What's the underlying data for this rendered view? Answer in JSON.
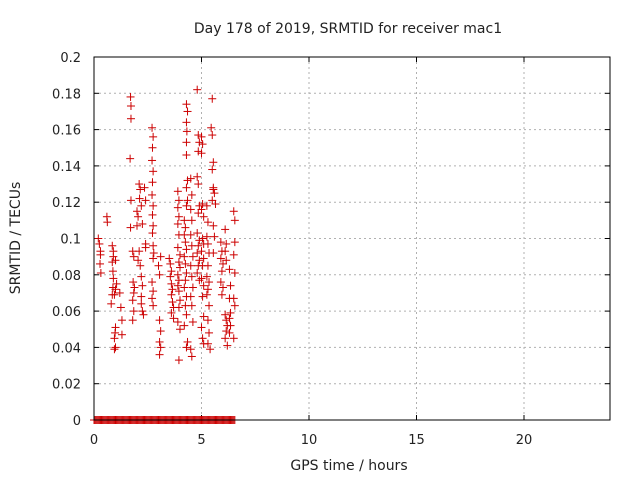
{
  "chart_data": {
    "type": "scatter",
    "title": "Day 178 of 2019, SRMTID for receiver mac1",
    "xlabel": "GPS time / hours",
    "ylabel": "SRMTID / TECUs",
    "xlim": [
      0,
      24
    ],
    "ylim": [
      0,
      0.2
    ],
    "xticks": [
      "0",
      "5",
      "10",
      "15",
      "20"
    ],
    "yticks": [
      "0",
      "0.02",
      "0.04",
      "0.06",
      "0.08",
      "0.1",
      "0.12",
      "0.14",
      "0.16",
      "0.18",
      "0.2"
    ],
    "grid": true,
    "marker": "+",
    "color": "#cc0000",
    "series": [
      {
        "values": [
          [
            0.2,
            0.1
          ],
          [
            0.25,
            0.097
          ],
          [
            0.3,
            0.093
          ],
          [
            0.3,
            0.091
          ],
          [
            0.28,
            0.086
          ],
          [
            0.32,
            0.081
          ],
          [
            0.6,
            0.112
          ],
          [
            0.62,
            0.109
          ],
          [
            0.85,
            0.096
          ],
          [
            0.9,
            0.093
          ],
          [
            0.9,
            0.09
          ],
          [
            0.85,
            0.087
          ],
          [
            0.88,
            0.082
          ],
          [
            0.9,
            0.078
          ],
          [
            0.88,
            0.073
          ],
          [
            0.85,
            0.069
          ],
          [
            0.8,
            0.064
          ],
          [
            1.0,
            0.088
          ],
          [
            1.05,
            0.075
          ],
          [
            1.0,
            0.072
          ],
          [
            0.95,
            0.069
          ],
          [
            1.0,
            0.051
          ],
          [
            0.98,
            0.048
          ],
          [
            0.95,
            0.045
          ],
          [
            1.0,
            0.04
          ],
          [
            0.95,
            0.039
          ],
          [
            1.2,
            0.07
          ],
          [
            1.25,
            0.062
          ],
          [
            1.3,
            0.055
          ],
          [
            1.3,
            0.047
          ],
          [
            1.7,
            0.178
          ],
          [
            1.72,
            0.173
          ],
          [
            1.72,
            0.166
          ],
          [
            1.68,
            0.144
          ],
          [
            1.72,
            0.121
          ],
          [
            1.7,
            0.106
          ],
          [
            1.8,
            0.093
          ],
          [
            1.85,
            0.09
          ],
          [
            1.82,
            0.076
          ],
          [
            1.88,
            0.073
          ],
          [
            1.85,
            0.07
          ],
          [
            1.8,
            0.066
          ],
          [
            1.85,
            0.06
          ],
          [
            1.8,
            0.055
          ],
          [
            2.0,
            0.115
          ],
          [
            2.05,
            0.112
          ],
          [
            2.0,
            0.107
          ],
          [
            2.1,
            0.093
          ],
          [
            2.05,
            0.088
          ],
          [
            2.1,
            0.13
          ],
          [
            2.15,
            0.127
          ],
          [
            2.12,
            0.122
          ],
          [
            2.2,
            0.118
          ],
          [
            2.25,
            0.108
          ],
          [
            2.15,
            0.085
          ],
          [
            2.2,
            0.079
          ],
          [
            2.25,
            0.074
          ],
          [
            2.2,
            0.068
          ],
          [
            2.2,
            0.064
          ],
          [
            2.25,
            0.06
          ],
          [
            2.3,
            0.058
          ],
          [
            2.35,
            0.128
          ],
          [
            2.4,
            0.121
          ],
          [
            2.4,
            0.097
          ],
          [
            2.4,
            0.095
          ],
          [
            2.7,
            0.161
          ],
          [
            2.75,
            0.156
          ],
          [
            2.72,
            0.15
          ],
          [
            2.7,
            0.143
          ],
          [
            2.75,
            0.137
          ],
          [
            2.72,
            0.131
          ],
          [
            2.7,
            0.124
          ],
          [
            2.75,
            0.118
          ],
          [
            2.72,
            0.113
          ],
          [
            2.75,
            0.107
          ],
          [
            2.72,
            0.103
          ],
          [
            2.75,
            0.096
          ],
          [
            2.78,
            0.092
          ],
          [
            2.75,
            0.089
          ],
          [
            2.7,
            0.076
          ],
          [
            2.75,
            0.071
          ],
          [
            2.7,
            0.067
          ],
          [
            2.75,
            0.063
          ],
          [
            3.0,
            0.085
          ],
          [
            3.05,
            0.08
          ],
          [
            3.1,
            0.09
          ],
          [
            3.05,
            0.055
          ],
          [
            3.1,
            0.049
          ],
          [
            3.05,
            0.043
          ],
          [
            3.1,
            0.04
          ],
          [
            3.05,
            0.036
          ],
          [
            3.5,
            0.089
          ],
          [
            3.55,
            0.086
          ],
          [
            3.6,
            0.082
          ],
          [
            3.55,
            0.079
          ],
          [
            3.6,
            0.075
          ],
          [
            3.65,
            0.072
          ],
          [
            3.6,
            0.069
          ],
          [
            3.65,
            0.065
          ],
          [
            3.7,
            0.062
          ],
          [
            3.6,
            0.059
          ],
          [
            3.7,
            0.056
          ],
          [
            3.9,
            0.126
          ],
          [
            3.95,
            0.121
          ],
          [
            3.9,
            0.117
          ],
          [
            3.95,
            0.112
          ],
          [
            3.9,
            0.108
          ],
          [
            3.95,
            0.102
          ],
          [
            3.9,
            0.095
          ],
          [
            4.0,
            0.091
          ],
          [
            3.95,
            0.087
          ],
          [
            4.0,
            0.084
          ],
          [
            3.9,
            0.08
          ],
          [
            3.95,
            0.077
          ],
          [
            3.9,
            0.074
          ],
          [
            3.95,
            0.071
          ],
          [
            4.0,
            0.066
          ],
          [
            3.95,
            0.062
          ],
          [
            3.9,
            0.054
          ],
          [
            4.0,
            0.05
          ],
          [
            3.95,
            0.033
          ],
          [
            4.2,
            0.11
          ],
          [
            4.25,
            0.106
          ],
          [
            4.2,
            0.102
          ],
          [
            4.25,
            0.098
          ],
          [
            4.3,
            0.094
          ],
          [
            4.2,
            0.09
          ],
          [
            4.25,
            0.086
          ],
          [
            4.3,
            0.081
          ],
          [
            4.25,
            0.077
          ],
          [
            4.2,
            0.073
          ],
          [
            4.3,
            0.068
          ],
          [
            4.25,
            0.063
          ],
          [
            4.3,
            0.058
          ],
          [
            4.2,
            0.052
          ],
          [
            4.35,
            0.043
          ],
          [
            4.3,
            0.04
          ],
          [
            4.3,
            0.174
          ],
          [
            4.35,
            0.17
          ],
          [
            4.3,
            0.164
          ],
          [
            4.32,
            0.159
          ],
          [
            4.3,
            0.153
          ],
          [
            4.3,
            0.146
          ],
          [
            4.35,
            0.132
          ],
          [
            4.3,
            0.128
          ],
          [
            4.35,
            0.121
          ],
          [
            4.3,
            0.118
          ],
          [
            4.5,
            0.133
          ],
          [
            4.55,
            0.124
          ],
          [
            4.5,
            0.116
          ],
          [
            4.55,
            0.11
          ],
          [
            4.5,
            0.102
          ],
          [
            4.55,
            0.096
          ],
          [
            4.6,
            0.09
          ],
          [
            4.5,
            0.085
          ],
          [
            4.55,
            0.079
          ],
          [
            4.6,
            0.073
          ],
          [
            4.5,
            0.068
          ],
          [
            4.55,
            0.063
          ],
          [
            4.6,
            0.054
          ],
          [
            4.5,
            0.039
          ],
          [
            4.55,
            0.035
          ],
          [
            4.8,
            0.182
          ],
          [
            4.85,
            0.157
          ],
          [
            4.9,
            0.153
          ],
          [
            4.85,
            0.148
          ],
          [
            4.8,
            0.134
          ],
          [
            4.85,
            0.13
          ],
          [
            4.9,
            0.118
          ],
          [
            4.85,
            0.114
          ],
          [
            4.8,
            0.103
          ],
          [
            4.9,
            0.099
          ],
          [
            4.85,
            0.096
          ],
          [
            4.8,
            0.092
          ],
          [
            4.9,
            0.088
          ],
          [
            4.85,
            0.085
          ],
          [
            4.8,
            0.081
          ],
          [
            4.9,
            0.077
          ],
          [
            5.0,
            0.156
          ],
          [
            5.05,
            0.152
          ],
          [
            5.0,
            0.147
          ],
          [
            5.05,
            0.119
          ],
          [
            5.0,
            0.116
          ],
          [
            5.1,
            0.112
          ],
          [
            5.05,
            0.1
          ],
          [
            5.1,
            0.097
          ],
          [
            5.0,
            0.093
          ],
          [
            5.1,
            0.089
          ],
          [
            5.05,
            0.085
          ],
          [
            5.0,
            0.078
          ],
          [
            5.1,
            0.074
          ],
          [
            5.05,
            0.068
          ],
          [
            5.1,
            0.057
          ],
          [
            5.0,
            0.051
          ],
          [
            5.05,
            0.045
          ],
          [
            5.1,
            0.042
          ],
          [
            5.25,
            0.118
          ],
          [
            5.3,
            0.109
          ],
          [
            5.25,
            0.101
          ],
          [
            5.3,
            0.097
          ],
          [
            5.35,
            0.092
          ],
          [
            5.3,
            0.085
          ],
          [
            5.25,
            0.079
          ],
          [
            5.35,
            0.076
          ],
          [
            5.3,
            0.072
          ],
          [
            5.25,
            0.069
          ],
          [
            5.35,
            0.063
          ],
          [
            5.3,
            0.055
          ],
          [
            5.35,
            0.048
          ],
          [
            5.3,
            0.042
          ],
          [
            5.4,
            0.039
          ],
          [
            5.5,
            0.177
          ],
          [
            5.45,
            0.161
          ],
          [
            5.5,
            0.157
          ],
          [
            5.55,
            0.142
          ],
          [
            5.5,
            0.138
          ],
          [
            5.55,
            0.127
          ],
          [
            5.5,
            0.121
          ],
          [
            5.55,
            0.107
          ],
          [
            5.6,
            0.101
          ],
          [
            5.55,
            0.092
          ],
          [
            5.55,
            0.128
          ],
          [
            5.6,
            0.125
          ],
          [
            5.65,
            0.119
          ],
          [
            5.9,
            0.098
          ],
          [
            5.95,
            0.093
          ],
          [
            5.9,
            0.089
          ],
          [
            6.0,
            0.086
          ],
          [
            5.95,
            0.082
          ],
          [
            5.9,
            0.076
          ],
          [
            6.0,
            0.073
          ],
          [
            5.95,
            0.069
          ],
          [
            6.1,
            0.105
          ],
          [
            6.15,
            0.097
          ],
          [
            6.1,
            0.093
          ],
          [
            6.15,
            0.088
          ],
          [
            6.1,
            0.058
          ],
          [
            6.15,
            0.055
          ],
          [
            6.2,
            0.052
          ],
          [
            6.15,
            0.049
          ],
          [
            6.1,
            0.045
          ],
          [
            6.2,
            0.041
          ],
          [
            6.3,
            0.083
          ],
          [
            6.35,
            0.074
          ],
          [
            6.3,
            0.067
          ],
          [
            6.35,
            0.059
          ],
          [
            6.3,
            0.056
          ],
          [
            6.35,
            0.052
          ],
          [
            6.3,
            0.048
          ],
          [
            6.5,
            0.115
          ],
          [
            6.55,
            0.11
          ],
          [
            6.55,
            0.098
          ],
          [
            6.5,
            0.091
          ],
          [
            6.55,
            0.081
          ],
          [
            6.5,
            0.067
          ],
          [
            6.55,
            0.063
          ],
          [
            6.5,
            0.045
          ]
        ],
        "zero_values_x": [
          0.0,
          0.05,
          0.1,
          0.15,
          0.2,
          0.25,
          0.3,
          0.35,
          0.4,
          0.45,
          0.5,
          0.55,
          0.6,
          0.65,
          0.7,
          0.75,
          0.8,
          0.85,
          0.9,
          0.95,
          1.0,
          1.05,
          1.1,
          1.15,
          1.2,
          1.25,
          1.3,
          1.35,
          1.4,
          1.45,
          1.5,
          1.55,
          1.6,
          1.65,
          1.7,
          1.75,
          1.8,
          1.85,
          1.9,
          1.95,
          2.0,
          2.05,
          2.1,
          2.15,
          2.2,
          2.25,
          2.3,
          2.35,
          2.4,
          2.45,
          2.5,
          2.55,
          2.6,
          2.65,
          2.7,
          2.75,
          2.8,
          2.85,
          2.9,
          2.95,
          3.0,
          3.05,
          3.1,
          3.15,
          3.2,
          3.25,
          3.3,
          3.35,
          3.4,
          3.45,
          3.5,
          3.55,
          3.6,
          3.65,
          3.7,
          3.75,
          3.8,
          3.85,
          3.9,
          3.95,
          4.0,
          4.05,
          4.1,
          4.15,
          4.2,
          4.25,
          4.3,
          4.35,
          4.4,
          4.45,
          4.5,
          4.55,
          4.6,
          4.65,
          4.7,
          4.75,
          4.8,
          4.85,
          4.9,
          4.95,
          5.0,
          5.05,
          5.1,
          5.15,
          5.2,
          5.25,
          5.3,
          5.35,
          5.4,
          5.45,
          5.5,
          5.55,
          5.6,
          5.65,
          5.7,
          5.75,
          5.8,
          5.85,
          5.9,
          5.95,
          6.0,
          6.05,
          6.1,
          6.15,
          6.2,
          6.25,
          6.3,
          6.35,
          6.4,
          6.45,
          6.5,
          6.55
        ]
      }
    ]
  }
}
